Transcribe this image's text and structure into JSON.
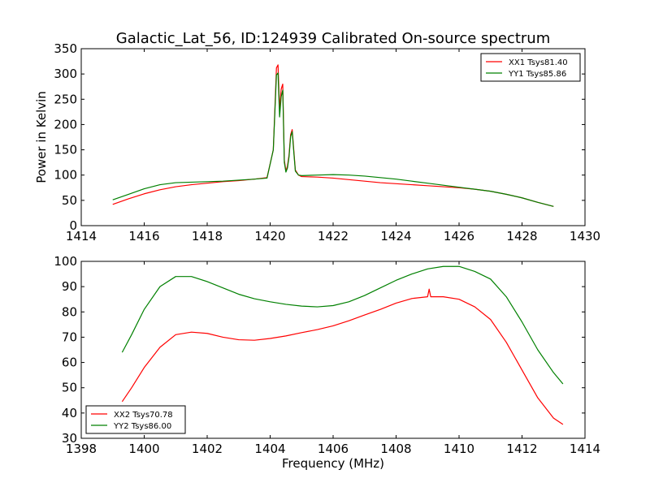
{
  "figure": {
    "title": "Galactic_Lat_56, ID:124939 Calibrated On-source spectrum"
  },
  "chart_data": [
    {
      "type": "line",
      "title": "Galactic_Lat_56, ID:124939 Calibrated On-source spectrum",
      "xlabel": "",
      "ylabel": "Power in Kelvin",
      "xlim": [
        1414,
        1430
      ],
      "ylim": [
        0,
        350
      ],
      "xticks": [
        "1414",
        "1416",
        "1418",
        "1420",
        "1422",
        "1424",
        "1426",
        "1428",
        "1430"
      ],
      "yticks": [
        "0",
        "50",
        "100",
        "150",
        "200",
        "250",
        "300",
        "350"
      ],
      "grid": false,
      "legend_position": "upper right",
      "series": [
        {
          "name": "XX1 Tsys81.40",
          "color": "#ff0000",
          "x": [
            1415.0,
            1415.5,
            1416.0,
            1416.5,
            1417.0,
            1417.5,
            1418.0,
            1418.5,
            1419.0,
            1419.5,
            1419.9,
            1420.1,
            1420.2,
            1420.25,
            1420.3,
            1420.35,
            1420.4,
            1420.45,
            1420.5,
            1420.55,
            1420.6,
            1420.65,
            1420.7,
            1420.75,
            1420.8,
            1420.9,
            1421.0,
            1421.5,
            1422.0,
            1422.5,
            1423.0,
            1423.5,
            1424.0,
            1424.5,
            1425.0,
            1425.5,
            1426.0,
            1426.5,
            1427.0,
            1427.5,
            1428.0,
            1428.5,
            1429.0
          ],
          "y": [
            42,
            53,
            63,
            71,
            77,
            81,
            84,
            87,
            89,
            92,
            95,
            150,
            312,
            318,
            230,
            270,
            280,
            130,
            108,
            118,
            140,
            180,
            190,
            150,
            110,
            100,
            97,
            96,
            94,
            91,
            88,
            85,
            83,
            81,
            79,
            77,
            75,
            72,
            68,
            62,
            55,
            46,
            38
          ]
        },
        {
          "name": "YY1 Tsys85.86",
          "color": "#008000",
          "x": [
            1415.0,
            1415.5,
            1416.0,
            1416.5,
            1417.0,
            1417.5,
            1418.0,
            1418.5,
            1419.0,
            1419.5,
            1419.9,
            1420.1,
            1420.2,
            1420.25,
            1420.3,
            1420.35,
            1420.4,
            1420.45,
            1420.5,
            1420.55,
            1420.6,
            1420.65,
            1420.7,
            1420.75,
            1420.8,
            1420.9,
            1421.0,
            1421.5,
            1422.0,
            1422.5,
            1423.0,
            1423.5,
            1424.0,
            1424.5,
            1425.0,
            1425.5,
            1426.0,
            1426.5,
            1427.0,
            1427.5,
            1428.0,
            1428.5,
            1429.0
          ],
          "y": [
            51,
            62,
            73,
            81,
            85,
            86,
            87,
            88,
            90,
            92,
            94,
            150,
            298,
            302,
            215,
            255,
            268,
            125,
            106,
            114,
            136,
            176,
            186,
            146,
            108,
            100,
            99,
            100,
            101,
            100,
            98,
            95,
            92,
            88,
            84,
            80,
            76,
            72,
            68,
            62,
            55,
            46,
            38
          ]
        }
      ]
    },
    {
      "type": "line",
      "title": "",
      "xlabel": "Frequency (MHz)",
      "ylabel": "",
      "xlim": [
        1398,
        1414
      ],
      "ylim": [
        30,
        100
      ],
      "xticks": [
        "1398",
        "1400",
        "1402",
        "1404",
        "1406",
        "1408",
        "1410",
        "1412",
        "1414"
      ],
      "yticks": [
        "30",
        "40",
        "50",
        "60",
        "70",
        "80",
        "90",
        "100"
      ],
      "grid": false,
      "legend_position": "lower left",
      "series": [
        {
          "name": "XX2 Tsys70.78",
          "color": "#ff0000",
          "x": [
            1399.3,
            1399.6,
            1400.0,
            1400.5,
            1401.0,
            1401.5,
            1402.0,
            1402.5,
            1403.0,
            1403.5,
            1404.0,
            1404.5,
            1405.0,
            1405.5,
            1406.0,
            1406.5,
            1407.0,
            1407.5,
            1408.0,
            1408.5,
            1409.0,
            1409.05,
            1409.1,
            1409.5,
            1410.0,
            1410.5,
            1411.0,
            1411.5,
            1412.0,
            1412.5,
            1413.0,
            1413.3
          ],
          "y": [
            44.5,
            50,
            58,
            66,
            71,
            72,
            71.5,
            70,
            69,
            68.8,
            69.5,
            70.5,
            71.8,
            73,
            74.5,
            76.5,
            78.8,
            81,
            83.5,
            85.3,
            86,
            89,
            86,
            86,
            85,
            82,
            77,
            68,
            57,
            46,
            38,
            35.5
          ]
        },
        {
          "name": "YY2 Tsys86.00",
          "color": "#008000",
          "x": [
            1399.3,
            1399.6,
            1400.0,
            1400.5,
            1401.0,
            1401.5,
            1402.0,
            1402.5,
            1403.0,
            1403.5,
            1404.0,
            1404.5,
            1405.0,
            1405.5,
            1406.0,
            1406.5,
            1407.0,
            1407.5,
            1408.0,
            1408.5,
            1409.0,
            1409.5,
            1410.0,
            1410.5,
            1411.0,
            1411.5,
            1412.0,
            1412.5,
            1413.0,
            1413.3
          ],
          "y": [
            64,
            71,
            81,
            90,
            94,
            94,
            92,
            89.5,
            87,
            85.2,
            84,
            83,
            82.3,
            82,
            82.5,
            84,
            86.5,
            89.5,
            92.5,
            95,
            97,
            98,
            98,
            96,
            93,
            86,
            76,
            65,
            56,
            51.5
          ]
        }
      ]
    }
  ]
}
